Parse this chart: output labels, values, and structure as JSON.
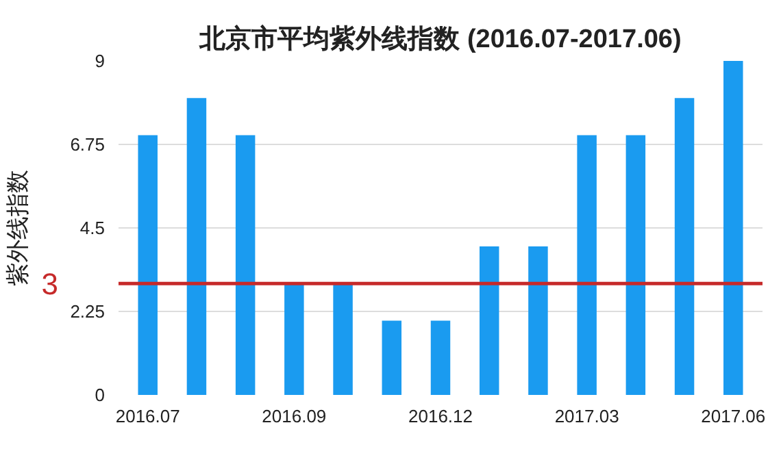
{
  "chart_data": {
    "type": "bar",
    "title": "北京市平均紫外线指数 (2016.07-2017.06)",
    "ylabel": "紫外线指数",
    "categories": [
      "2016.07",
      null,
      null,
      "2016.09",
      null,
      null,
      "2016.12",
      null,
      null,
      "2017.03",
      null,
      null,
      "2017.06"
    ],
    "values": [
      7,
      8,
      7,
      3,
      3,
      2,
      2,
      4,
      4,
      7,
      7,
      8,
      9
    ],
    "color": "#1a9bf0",
    "ylim": [
      0,
      9
    ],
    "yticks": [
      0,
      2.25,
      4.5,
      6.75,
      9
    ],
    "grid": "y",
    "ref_lines": [
      {
        "axis": "y",
        "value": 3,
        "label": "3",
        "color": "#c62a2a"
      }
    ]
  }
}
